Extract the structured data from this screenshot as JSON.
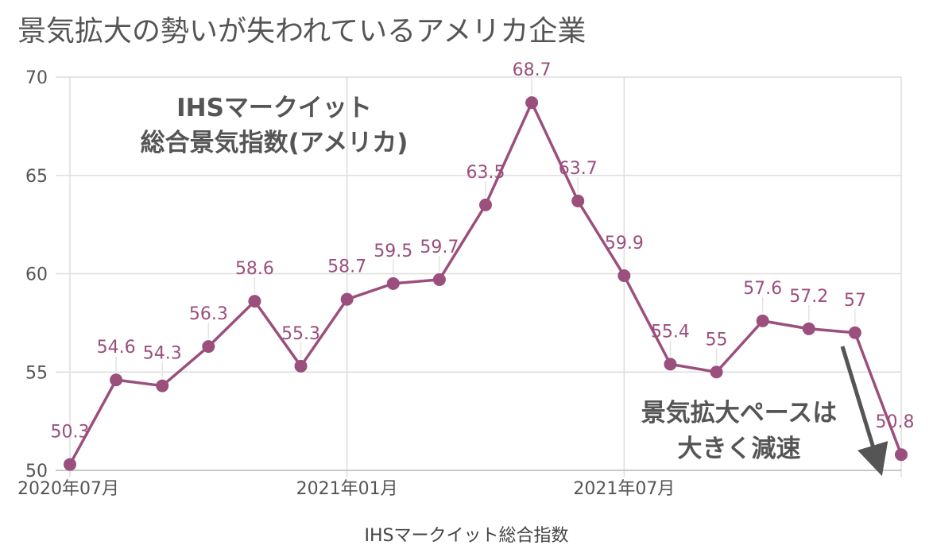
{
  "page_title": "景気拡大の勢いが失われているアメリカ企業",
  "chart_data": {
    "type": "line",
    "xlabel": "IHSマークイット総合指数",
    "ylabel": "",
    "ylim": [
      50,
      70
    ],
    "yticks": [
      "50",
      "55",
      "60",
      "65",
      "70"
    ],
    "xtick_labels": [
      "2020年07月",
      "2021年01月",
      "2021年07月"
    ],
    "x": [
      "2020-07",
      "2020-08",
      "2020-09",
      "2020-10",
      "2020-11",
      "2020-12",
      "2021-01",
      "2021-02",
      "2021-03",
      "2021-04",
      "2021-05",
      "2021-06",
      "2021-07",
      "2021-08",
      "2021-09",
      "2021-10",
      "2021-11",
      "2021-12",
      "2022-01"
    ],
    "series": [
      {
        "name": "IHSマークイット総合景気指数(アメリカ)",
        "color": "#9b4f7c",
        "values": [
          50.3,
          54.6,
          54.3,
          56.3,
          58.6,
          55.3,
          58.7,
          59.5,
          59.7,
          63.5,
          68.7,
          63.7,
          59.9,
          55.4,
          55,
          57.6,
          57.2,
          57,
          50.8
        ]
      }
    ],
    "data_labels": [
      "50.3",
      "54.6",
      "54.3",
      "56.3",
      "58.6",
      "55.3",
      "58.7",
      "59.5",
      "59.7",
      "63.5",
      "68.7",
      "63.7",
      "59.9",
      "55.4",
      "55",
      "57.6",
      "57.2",
      "57",
      "50.8"
    ],
    "annotations": {
      "series_label_line1": "IHSマークイット",
      "series_label_line2": "総合景気指数(アメリカ)",
      "slowdown_line1": "景気拡大ペースは",
      "slowdown_line2": "大きく減速"
    },
    "grid": true,
    "colors": {
      "line": "#9b4f7c",
      "grid": "#dddddd",
      "axis_text": "#555555",
      "arrow": "#555555"
    }
  }
}
